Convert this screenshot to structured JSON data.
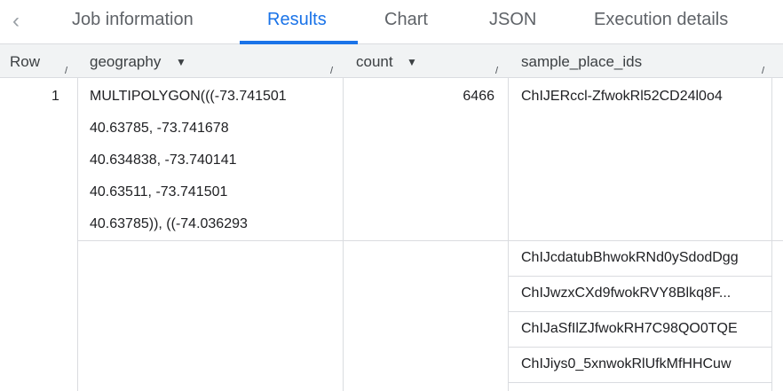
{
  "tabs": {
    "back_icon": "chevron-left-icon",
    "items": [
      "Job information",
      "Results",
      "Chart",
      "JSON",
      "Execution details"
    ],
    "active": "Results"
  },
  "columns": [
    "Row",
    "geography",
    "count",
    "sample_place_ids"
  ],
  "sort_icon": "triangle-down-icon",
  "rows": [
    {
      "row": "1",
      "geography": [
        "MULTIPOLYGON(((-73.741501",
        "40.63785, -73.741678",
        "40.634838, -73.740141",
        "40.63511, -73.741501",
        "40.63785)), ((-74.036293"
      ],
      "count": "6466",
      "sample_place_ids": [
        "ChIJERccl-ZfwokRl52CD24l0o4",
        "ChIJcdatubBhwokRNd0ySdodDgg",
        "ChIJwzxCXd9fwokRVY8Blkq8F...",
        "ChIJaSfIlZJfwokRH7C98QO0TQE",
        "ChIJiys0_5xnwokRlUfkMfHHCuw"
      ]
    }
  ]
}
